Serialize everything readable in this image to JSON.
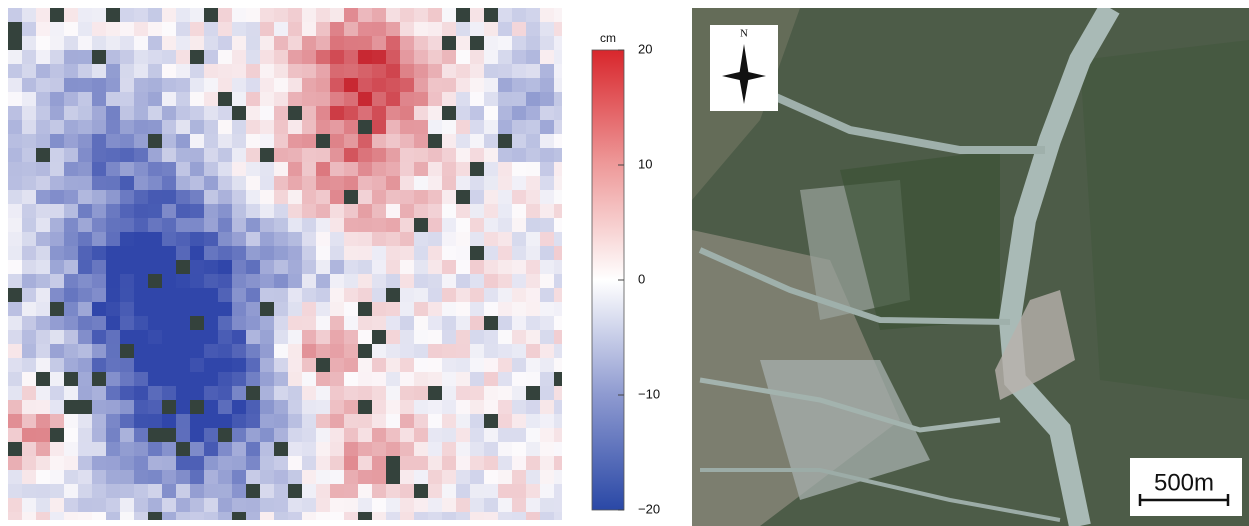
{
  "deformation_map": {
    "colorbar": {
      "unit": "cm",
      "lim": [
        -20,
        20
      ],
      "ticks": [
        20,
        10,
        0,
        {
          "value": -10,
          "label": "−10"
        },
        {
          "value": -20,
          "label": "−20"
        }
      ]
    }
  },
  "satellite_image": {
    "north_label": "N",
    "scale_bar_label": "500m"
  }
}
